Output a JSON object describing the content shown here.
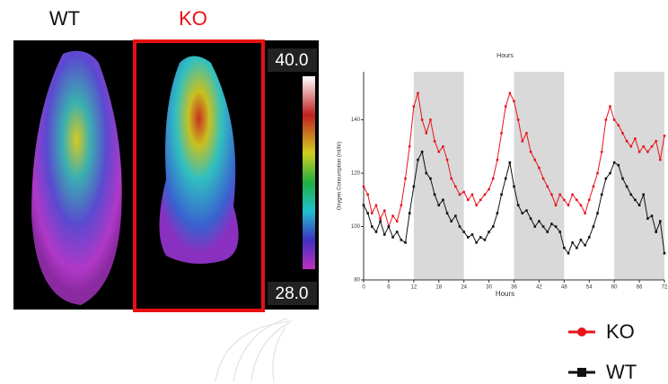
{
  "image": {
    "labels": [
      "WT",
      "KO"
    ],
    "scale_max": "40.0",
    "scale_min": "28.0"
  },
  "chart_data": {
    "type": "line",
    "title": "Hours",
    "x_label": "Hours",
    "y_label": "Oxygen Consumption (ml/hr)",
    "x": [
      0,
      1,
      2,
      3,
      4,
      5,
      6,
      7,
      8,
      9,
      10,
      11,
      12,
      13,
      14,
      15,
      16,
      17,
      18,
      19,
      20,
      21,
      22,
      23,
      24,
      25,
      26,
      27,
      28,
      29,
      30,
      31,
      32,
      33,
      34,
      35,
      36,
      37,
      38,
      39,
      40,
      41,
      42,
      43,
      44,
      45,
      46,
      47,
      48,
      49,
      50,
      51,
      52,
      53,
      54,
      55,
      56,
      57,
      58,
      59,
      60,
      61,
      62,
      63,
      64,
      65,
      66,
      67,
      68,
      69,
      70,
      71,
      72
    ],
    "series": [
      {
        "name": "KO",
        "color": "#e8141b",
        "marker": "circle",
        "values": [
          115,
          112,
          105,
          108,
          103,
          106,
          100,
          104,
          102,
          108,
          118,
          130,
          145,
          150,
          140,
          135,
          140,
          132,
          128,
          130,
          125,
          118,
          115,
          112,
          113,
          110,
          112,
          108,
          110,
          112,
          114,
          118,
          125,
          135,
          145,
          150,
          147,
          140,
          132,
          135,
          128,
          125,
          122,
          118,
          115,
          112,
          108,
          112,
          110,
          108,
          112,
          110,
          108,
          105,
          110,
          115,
          120,
          128,
          140,
          145,
          140,
          138,
          135,
          132,
          130,
          133,
          128,
          130,
          128,
          130,
          132,
          125,
          134
        ]
      },
      {
        "name": "WT",
        "color": "#111111",
        "marker": "square",
        "values": [
          108,
          105,
          100,
          98,
          102,
          97,
          100,
          96,
          98,
          95,
          94,
          105,
          115,
          125,
          128,
          120,
          118,
          112,
          108,
          110,
          105,
          102,
          104,
          100,
          98,
          96,
          97,
          94,
          96,
          95,
          98,
          100,
          105,
          112,
          118,
          124,
          115,
          108,
          105,
          106,
          103,
          100,
          102,
          100,
          98,
          101,
          100,
          98,
          92,
          90,
          94,
          92,
          95,
          93,
          96,
          100,
          105,
          112,
          118,
          120,
          124,
          123,
          118,
          115,
          112,
          110,
          108,
          112,
          103,
          104,
          98,
          102,
          90
        ]
      }
    ],
    "shaded_ranges": [
      [
        12,
        24
      ],
      [
        36,
        48
      ],
      [
        60,
        72
      ]
    ],
    "shade_color": "#d9d9d9",
    "xlim": [
      0,
      72
    ],
    "xticks": [
      0,
      6,
      12,
      18,
      24,
      30,
      36,
      42,
      48,
      54,
      60,
      66,
      72
    ],
    "ylim": [
      80,
      158
    ],
    "yticks": [
      80,
      100,
      120,
      140
    ],
    "legend": "bottom-right"
  }
}
